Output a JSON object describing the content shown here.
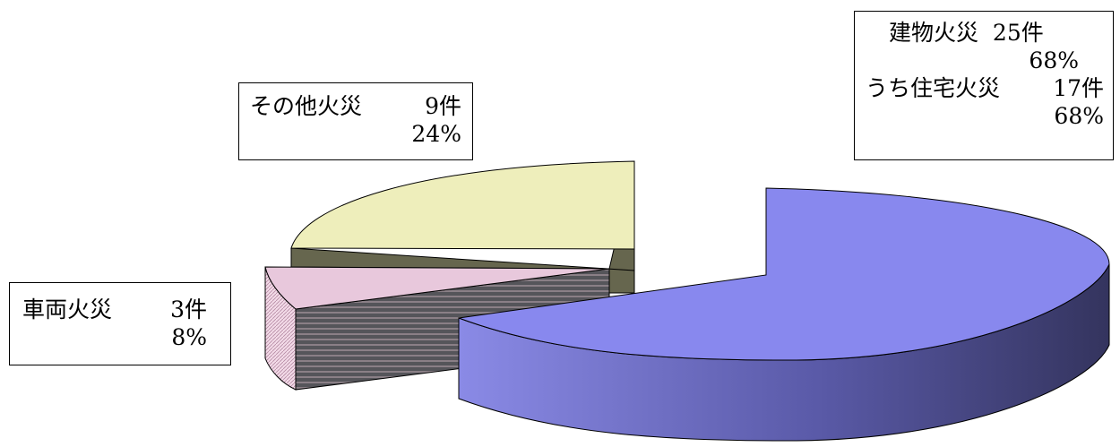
{
  "chart_data": {
    "type": "pie",
    "style": "3d-exploded",
    "slices": [
      {
        "label": "建物火災",
        "count_label": "25件",
        "percent_label": "68%",
        "value": 68,
        "color": "#8888ee"
      },
      {
        "label": "車両火災",
        "count_label": "3件",
        "percent_label": "8%",
        "value": 8,
        "color": "#e8c8dc"
      },
      {
        "label": "その他火災",
        "count_label": "9件",
        "percent_label": "24%",
        "value": 24,
        "color": "#eeeebb"
      }
    ],
    "sub_note": {
      "label": "うち住宅火災",
      "count_label": "17件",
      "percent_label": "68%"
    }
  }
}
